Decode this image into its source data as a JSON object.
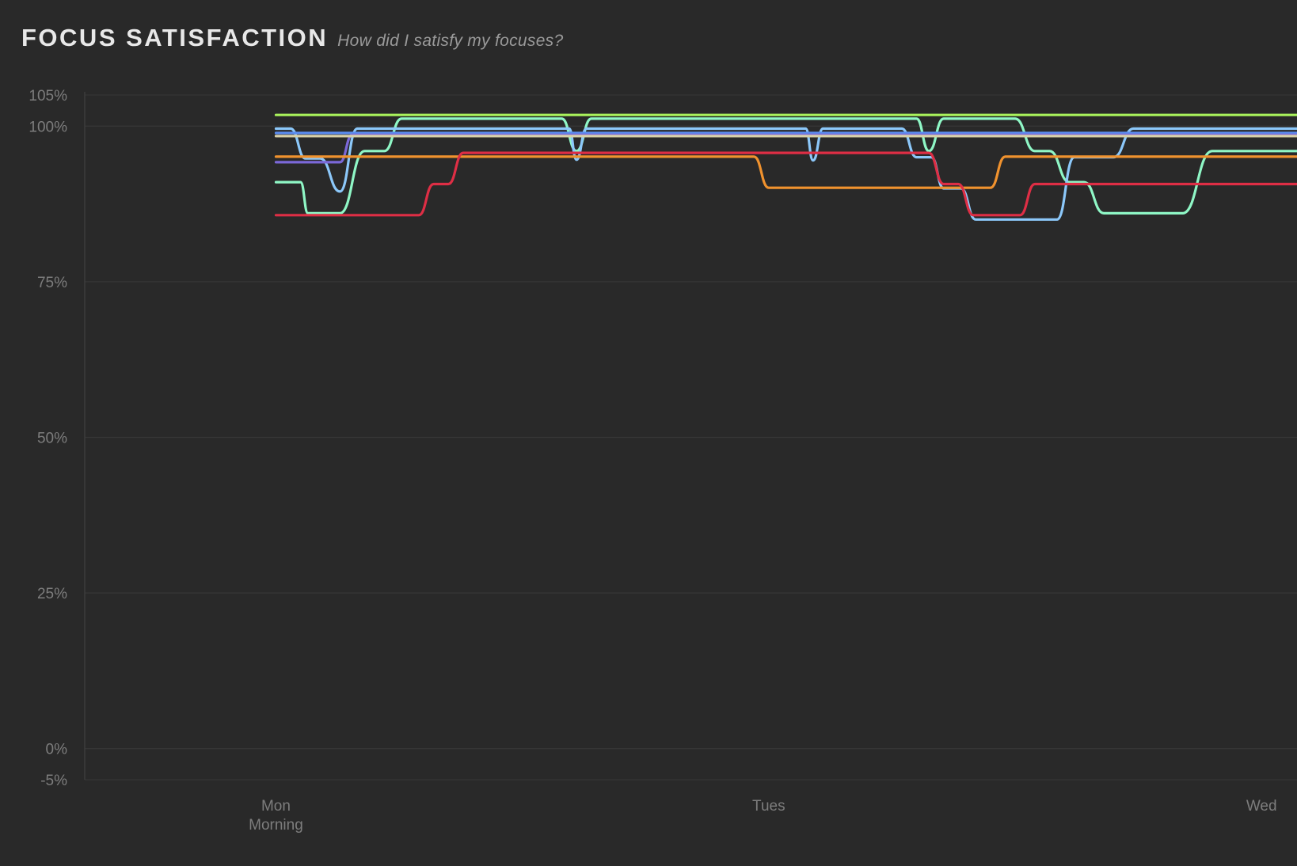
{
  "header": {
    "title": "FOCUS SATISFACTION",
    "subtitle": "How did I satisfy my focuses?"
  },
  "chart_data": {
    "type": "line",
    "title": "FOCUS SATISFACTION",
    "subtitle": "How did I satisfy my focuses?",
    "xlabel": "",
    "ylabel": "",
    "ylim": [
      -5,
      105
    ],
    "y_ticks": [
      105,
      100,
      75,
      50,
      25,
      0,
      -5
    ],
    "y_tick_labels": [
      "105%",
      "100%",
      "75%",
      "50%",
      "25%",
      "0%",
      "-5%"
    ],
    "x_ticks": [
      {
        "day": 0,
        "label": "Mon",
        "sublabel": "Morning"
      },
      {
        "day": 1,
        "label": "Tues",
        "sublabel": ""
      },
      {
        "day": 2,
        "label": "Wed",
        "sublabel": ""
      }
    ],
    "xlim": [
      -0.388,
      2.072
    ],
    "grid": true,
    "series": [
      {
        "color": "#a9f25b",
        "points": [
          [
            0,
            101.8
          ],
          [
            2.072,
            101.8
          ]
        ]
      },
      {
        "color": "#8ff7c6",
        "points": [
          [
            0,
            91
          ],
          [
            0.05,
            91
          ],
          [
            0.065,
            86
          ],
          [
            0.13,
            86
          ],
          [
            0.18,
            96
          ],
          [
            0.22,
            96
          ],
          [
            0.255,
            101.2
          ],
          [
            0.58,
            101.2
          ],
          [
            0.61,
            96
          ],
          [
            0.64,
            101.2
          ],
          [
            1.3,
            101.2
          ],
          [
            1.325,
            96
          ],
          [
            1.355,
            101.2
          ],
          [
            1.5,
            101.2
          ],
          [
            1.54,
            96
          ],
          [
            1.57,
            96
          ],
          [
            1.61,
            91
          ],
          [
            1.64,
            91
          ],
          [
            1.68,
            86
          ],
          [
            1.84,
            86
          ],
          [
            1.9,
            96
          ],
          [
            2.072,
            96
          ]
        ]
      },
      {
        "color": "#8cc8fa",
        "points": [
          [
            0,
            99.6
          ],
          [
            0.03,
            99.6
          ],
          [
            0.06,
            94.8
          ],
          [
            0.09,
            94.8
          ],
          [
            0.13,
            89.5
          ],
          [
            0.165,
            99.6
          ],
          [
            0.595,
            99.6
          ],
          [
            0.61,
            94.6
          ],
          [
            0.63,
            99.6
          ],
          [
            1.075,
            99.6
          ],
          [
            1.09,
            94.5
          ],
          [
            1.11,
            99.6
          ],
          [
            1.27,
            99.6
          ],
          [
            1.3,
            95
          ],
          [
            1.33,
            95
          ],
          [
            1.355,
            90
          ],
          [
            1.39,
            90
          ],
          [
            1.42,
            85
          ],
          [
            1.585,
            85
          ],
          [
            1.62,
            95
          ],
          [
            1.7,
            95
          ],
          [
            1.74,
            99.6
          ],
          [
            2.072,
            99.6
          ]
        ]
      },
      {
        "color": "#5b8cf0",
        "points": [
          [
            0,
            98.9
          ],
          [
            2.072,
            98.9
          ]
        ]
      },
      {
        "color": "#7b68d8",
        "points": [
          [
            0,
            94.2
          ],
          [
            0.13,
            94.2
          ],
          [
            0.155,
            98.6
          ],
          [
            2.072,
            98.6
          ]
        ]
      },
      {
        "color": "#d8d0a8",
        "points": [
          [
            0,
            98.4
          ],
          [
            2.072,
            98.4
          ]
        ]
      },
      {
        "color": "#f0922e",
        "points": [
          [
            0,
            95.1
          ],
          [
            0.97,
            95.1
          ],
          [
            1.0,
            90.1
          ],
          [
            1.45,
            90.1
          ],
          [
            1.48,
            95.1
          ],
          [
            2.072,
            95.1
          ]
        ]
      },
      {
        "color": "#de2e45",
        "points": [
          [
            0,
            85.7
          ],
          [
            0.29,
            85.7
          ],
          [
            0.32,
            90.7
          ],
          [
            0.35,
            90.7
          ],
          [
            0.38,
            95.7
          ],
          [
            1.325,
            95.7
          ],
          [
            1.355,
            90.7
          ],
          [
            1.385,
            90.7
          ],
          [
            1.415,
            85.7
          ],
          [
            1.51,
            85.7
          ],
          [
            1.54,
            90.7
          ],
          [
            2.072,
            90.7
          ]
        ]
      }
    ]
  }
}
